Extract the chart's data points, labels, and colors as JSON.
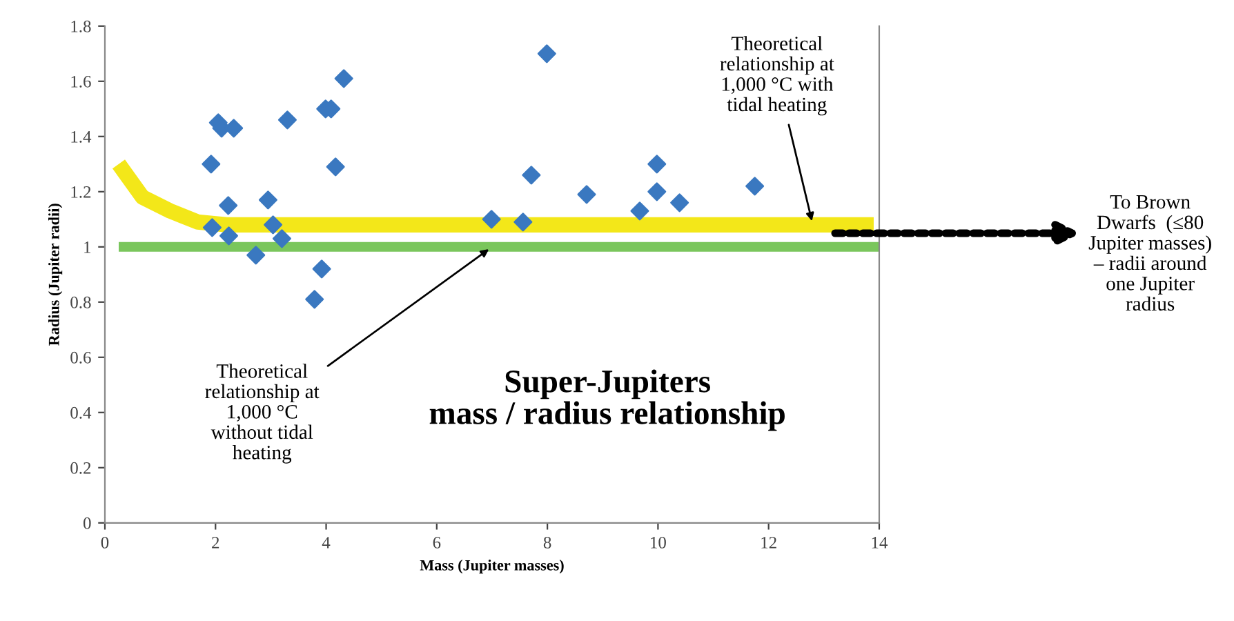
{
  "chart_data": {
    "type": "scatter",
    "title": "Super-Jupiters\nmass / radius relationship",
    "xlabel": "Mass (Jupiter masses)",
    "ylabel": "Radius (Jupiter radii)",
    "xlim": [
      0,
      14
    ],
    "ylim": [
      0,
      1.8
    ],
    "xticks": [
      0,
      2,
      4,
      6,
      8,
      10,
      12,
      14
    ],
    "yticks": [
      0,
      0.2,
      0.4,
      0.6,
      0.8,
      1,
      1.2,
      1.4,
      1.6,
      1.8
    ],
    "grid": false,
    "legend": false,
    "series": [
      {
        "type": "line",
        "color": "#f2e400",
        "marker": "none",
        "x": [
          0.25,
          0.68,
          1.18,
          1.68,
          2.2,
          13.9
        ],
        "values": [
          1.3,
          1.18,
          1.13,
          1.09,
          1.08,
          1.08
        ]
      },
      {
        "type": "line",
        "color": "#6cc04a",
        "marker": "none",
        "x": [
          0.25,
          14
        ],
        "values": [
          1.0,
          1.0
        ]
      },
      {
        "color": "#3a78c0",
        "marker": "diamond",
        "x": [
          4.32,
          3.99,
          4.09,
          2.05,
          2.11,
          2.33,
          3.3,
          1.92,
          4.17,
          2.23,
          2.95,
          1.94,
          3.04,
          2.24,
          3.2,
          2.73,
          3.92,
          3.79,
          7.99,
          7.71,
          8.71,
          9.98,
          9.98,
          10.39,
          9.67,
          11.75,
          6.99,
          7.56
        ],
        "values": [
          1.61,
          1.5,
          1.5,
          1.45,
          1.43,
          1.43,
          1.46,
          1.3,
          1.29,
          1.15,
          1.17,
          1.07,
          1.08,
          1.04,
          1.03,
          0.97,
          0.92,
          0.81,
          1.7,
          1.26,
          1.19,
          1.3,
          1.2,
          1.16,
          1.13,
          1.22,
          1.1,
          1.09
        ]
      }
    ],
    "annotations": [
      {
        "text": "Theoretical\nrelationship at\n1,000 °C with\ntidal heating",
        "x": 12.8,
        "y": 1.08
      },
      {
        "text": "Theoretical\nrelationship at\n1,000 °C\nwithout tidal\nheating",
        "x": 7.0,
        "y": 1.0
      },
      "To Brown\nDwarfs  (≤80\nJupiter masses)\n– radii around\none Jupiter\nradius"
    ]
  }
}
